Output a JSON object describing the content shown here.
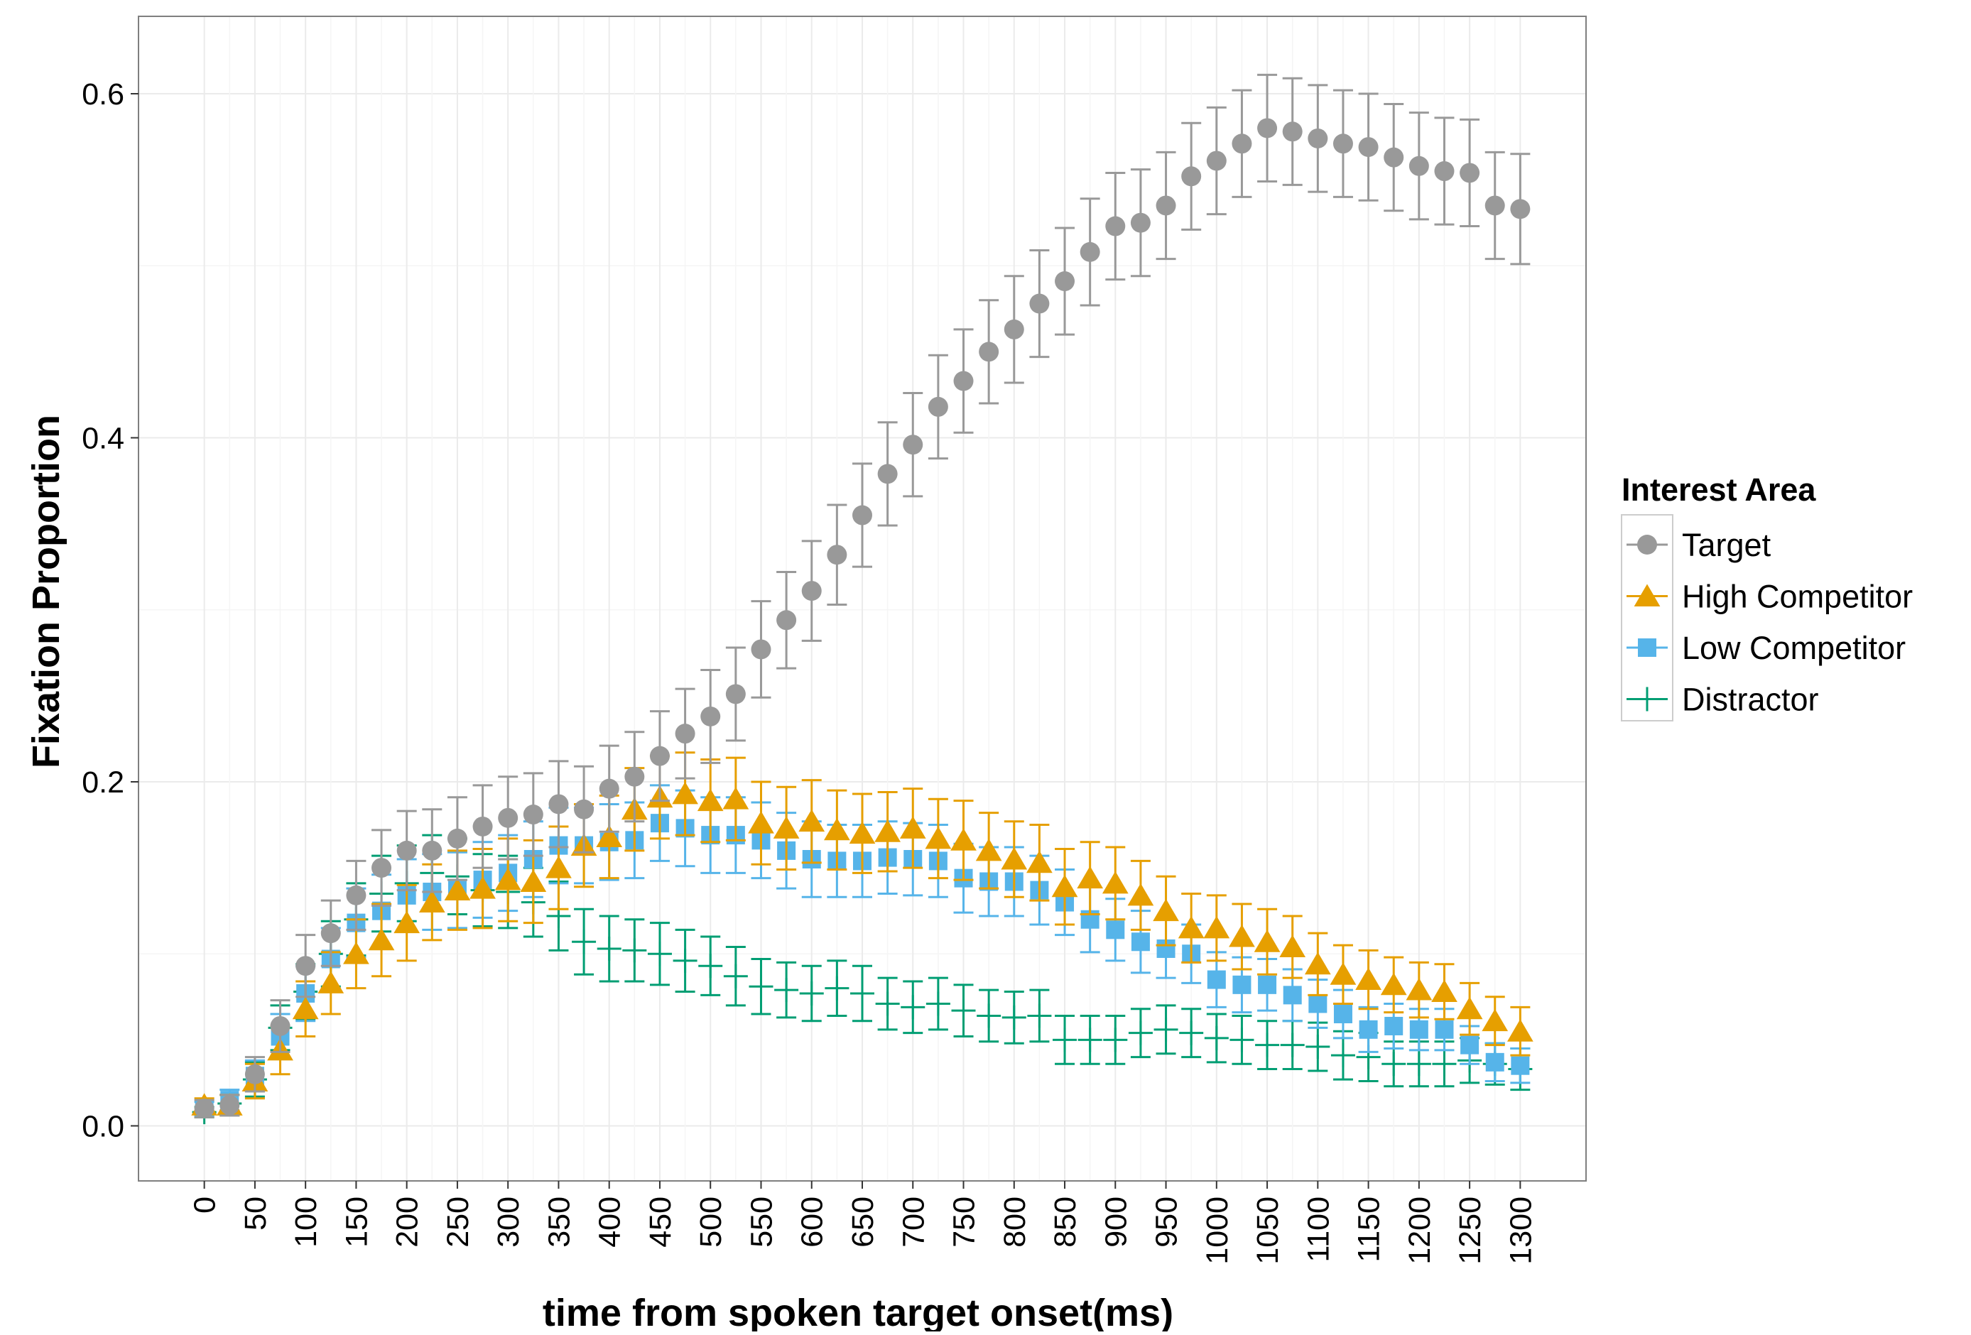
{
  "chart_data": {
    "type": "scatter",
    "xlabel": "time from spoken target onset(ms)",
    "ylabel": "Fixation Proportion",
    "xlim": [
      -65,
      1365
    ],
    "ylim": [
      -0.032,
      0.645
    ],
    "xticks": [
      0,
      50,
      100,
      150,
      200,
      250,
      300,
      350,
      400,
      450,
      500,
      550,
      600,
      650,
      700,
      750,
      800,
      850,
      900,
      950,
      1000,
      1050,
      1100,
      1150,
      1200,
      1250,
      1300
    ],
    "yticks": [
      0.0,
      0.2,
      0.4,
      0.6
    ],
    "ytick_labels": [
      "0.0",
      "0.2",
      "0.4",
      "0.6"
    ],
    "grid": true,
    "legend_title": "Interest Area",
    "legend_position": "right",
    "x": [
      0,
      25,
      50,
      75,
      100,
      125,
      150,
      175,
      200,
      225,
      250,
      275,
      300,
      325,
      350,
      375,
      400,
      425,
      450,
      475,
      500,
      525,
      550,
      575,
      600,
      625,
      650,
      675,
      700,
      725,
      750,
      775,
      800,
      825,
      850,
      875,
      900,
      925,
      950,
      975,
      1000,
      1025,
      1050,
      1075,
      1100,
      1125,
      1150,
      1175,
      1200,
      1225,
      1250,
      1275,
      1300
    ],
    "series": [
      {
        "name": "Target",
        "marker": "circle",
        "color": "#999999",
        "values": [
          0.01,
          0.012,
          0.03,
          0.058,
          0.093,
          0.112,
          0.134,
          0.15,
          0.16,
          0.16,
          0.167,
          0.174,
          0.179,
          0.181,
          0.187,
          0.184,
          0.196,
          0.203,
          0.215,
          0.228,
          0.238,
          0.251,
          0.277,
          0.294,
          0.311,
          0.332,
          0.355,
          0.379,
          0.396,
          0.418,
          0.433,
          0.45,
          0.463,
          0.478,
          0.491,
          0.508,
          0.523,
          0.525,
          0.535,
          0.552,
          0.561,
          0.571,
          0.58,
          0.578,
          0.574,
          0.571,
          0.569,
          0.563,
          0.558,
          0.555,
          0.554,
          0.535,
          0.533
        ],
        "error": [
          0.005,
          0.006,
          0.01,
          0.015,
          0.018,
          0.019,
          0.02,
          0.022,
          0.023,
          0.024,
          0.024,
          0.024,
          0.024,
          0.024,
          0.025,
          0.025,
          0.025,
          0.026,
          0.026,
          0.026,
          0.027,
          0.027,
          0.028,
          0.028,
          0.029,
          0.029,
          0.03,
          0.03,
          0.03,
          0.03,
          0.03,
          0.03,
          0.031,
          0.031,
          0.031,
          0.031,
          0.031,
          0.031,
          0.031,
          0.031,
          0.031,
          0.031,
          0.031,
          0.031,
          0.031,
          0.031,
          0.031,
          0.031,
          0.031,
          0.031,
          0.031,
          0.031,
          0.032
        ]
      },
      {
        "name": "High Competitor",
        "marker": "triangle",
        "color": "#E69F00",
        "values": [
          0.012,
          0.012,
          0.026,
          0.044,
          0.068,
          0.083,
          0.1,
          0.108,
          0.118,
          0.13,
          0.137,
          0.138,
          0.143,
          0.142,
          0.15,
          0.163,
          0.168,
          0.184,
          0.191,
          0.193,
          0.189,
          0.19,
          0.176,
          0.173,
          0.177,
          0.172,
          0.17,
          0.171,
          0.173,
          0.167,
          0.166,
          0.16,
          0.155,
          0.153,
          0.139,
          0.144,
          0.141,
          0.134,
          0.125,
          0.115,
          0.115,
          0.11,
          0.107,
          0.104,
          0.094,
          0.088,
          0.085,
          0.082,
          0.079,
          0.078,
          0.068,
          0.061,
          0.055
        ],
        "error": [
          0.004,
          0.006,
          0.01,
          0.014,
          0.016,
          0.018,
          0.02,
          0.021,
          0.022,
          0.022,
          0.023,
          0.023,
          0.024,
          0.024,
          0.024,
          0.024,
          0.024,
          0.024,
          0.024,
          0.024,
          0.024,
          0.024,
          0.024,
          0.024,
          0.024,
          0.023,
          0.023,
          0.023,
          0.023,
          0.023,
          0.023,
          0.022,
          0.022,
          0.022,
          0.022,
          0.021,
          0.021,
          0.02,
          0.02,
          0.02,
          0.019,
          0.019,
          0.019,
          0.018,
          0.018,
          0.017,
          0.017,
          0.016,
          0.016,
          0.016,
          0.015,
          0.014,
          0.014
        ]
      },
      {
        "name": "Low Competitor",
        "marker": "square",
        "color": "#56B4E9",
        "values": [
          0.01,
          0.015,
          0.029,
          0.052,
          0.077,
          0.097,
          0.118,
          0.125,
          0.134,
          0.136,
          0.137,
          0.143,
          0.147,
          0.155,
          0.163,
          0.163,
          0.165,
          0.166,
          0.176,
          0.173,
          0.169,
          0.169,
          0.166,
          0.16,
          0.155,
          0.154,
          0.154,
          0.156,
          0.155,
          0.154,
          0.144,
          0.142,
          0.142,
          0.137,
          0.13,
          0.12,
          0.114,
          0.107,
          0.103,
          0.1,
          0.085,
          0.082,
          0.082,
          0.076,
          0.071,
          0.065,
          0.056,
          0.058,
          0.056,
          0.056,
          0.047,
          0.037,
          0.035
        ],
        "error": [
          0.004,
          0.006,
          0.009,
          0.013,
          0.016,
          0.018,
          0.02,
          0.021,
          0.021,
          0.022,
          0.022,
          0.022,
          0.022,
          0.022,
          0.022,
          0.022,
          0.022,
          0.022,
          0.022,
          0.022,
          0.022,
          0.022,
          0.022,
          0.022,
          0.022,
          0.021,
          0.021,
          0.021,
          0.021,
          0.021,
          0.02,
          0.02,
          0.02,
          0.02,
          0.019,
          0.019,
          0.018,
          0.018,
          0.017,
          0.017,
          0.016,
          0.016,
          0.015,
          0.015,
          0.014,
          0.014,
          0.013,
          0.013,
          0.012,
          0.012,
          0.011,
          0.011,
          0.01
        ]
      },
      {
        "name": "Distractor",
        "marker": "plus",
        "color": "#009E73",
        "values": [
          0.008,
          0.013,
          0.027,
          0.057,
          0.078,
          0.1,
          0.12,
          0.135,
          0.141,
          0.147,
          0.145,
          0.137,
          0.136,
          0.13,
          0.122,
          0.107,
          0.103,
          0.102,
          0.1,
          0.096,
          0.093,
          0.087,
          0.081,
          0.079,
          0.077,
          0.08,
          0.077,
          0.071,
          0.069,
          0.071,
          0.067,
          0.064,
          0.063,
          0.064,
          0.05,
          0.05,
          0.05,
          0.054,
          0.056,
          0.054,
          0.051,
          0.05,
          0.047,
          0.047,
          0.046,
          0.041,
          0.04,
          0.036,
          0.036,
          0.036,
          0.038,
          0.036,
          0.033
        ],
        "error": [
          0.003,
          0.005,
          0.01,
          0.013,
          0.016,
          0.019,
          0.021,
          0.022,
          0.022,
          0.022,
          0.022,
          0.021,
          0.021,
          0.02,
          0.02,
          0.019,
          0.019,
          0.018,
          0.018,
          0.018,
          0.017,
          0.017,
          0.016,
          0.016,
          0.016,
          0.016,
          0.016,
          0.015,
          0.015,
          0.015,
          0.015,
          0.015,
          0.015,
          0.015,
          0.014,
          0.014,
          0.014,
          0.014,
          0.014,
          0.014,
          0.014,
          0.014,
          0.014,
          0.014,
          0.014,
          0.014,
          0.014,
          0.013,
          0.013,
          0.013,
          0.013,
          0.012,
          0.012
        ]
      }
    ]
  }
}
